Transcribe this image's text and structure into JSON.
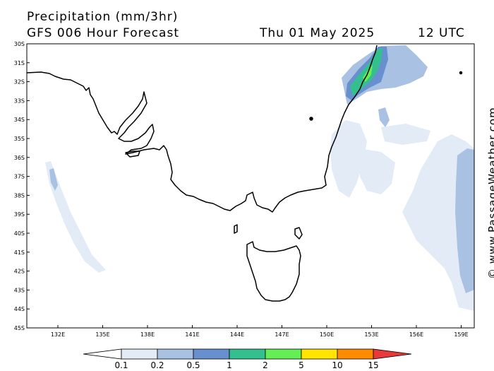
{
  "header": {
    "title": "Precipitation (mm/3hr)",
    "model": "GFS 006 Hour Forecast",
    "date": "Thu 01 May 2025",
    "time": "12 UTC"
  },
  "map": {
    "lat_labels": [
      "30S",
      "31S",
      "32S",
      "33S",
      "34S",
      "35S",
      "36S",
      "37S",
      "38S",
      "39S",
      "40S",
      "41S",
      "42S",
      "43S",
      "44S",
      "45S"
    ],
    "lon_labels": [
      "132E",
      "135E",
      "138E",
      "141E",
      "144E",
      "147E",
      "150E",
      "153E",
      "156E",
      "159E"
    ]
  },
  "legend": {
    "labels": [
      "0.1",
      "0.2",
      "0.5",
      "1",
      "2",
      "5",
      "10",
      "15"
    ],
    "colors": [
      "#ffffff",
      "#e3ebf7",
      "#a9c2e3",
      "#6890cf",
      "#33c08e",
      "#66ee55",
      "#ffe500",
      "#ff8c00",
      "#e8383a"
    ]
  },
  "credit": "© www.PassageWeather.com"
}
